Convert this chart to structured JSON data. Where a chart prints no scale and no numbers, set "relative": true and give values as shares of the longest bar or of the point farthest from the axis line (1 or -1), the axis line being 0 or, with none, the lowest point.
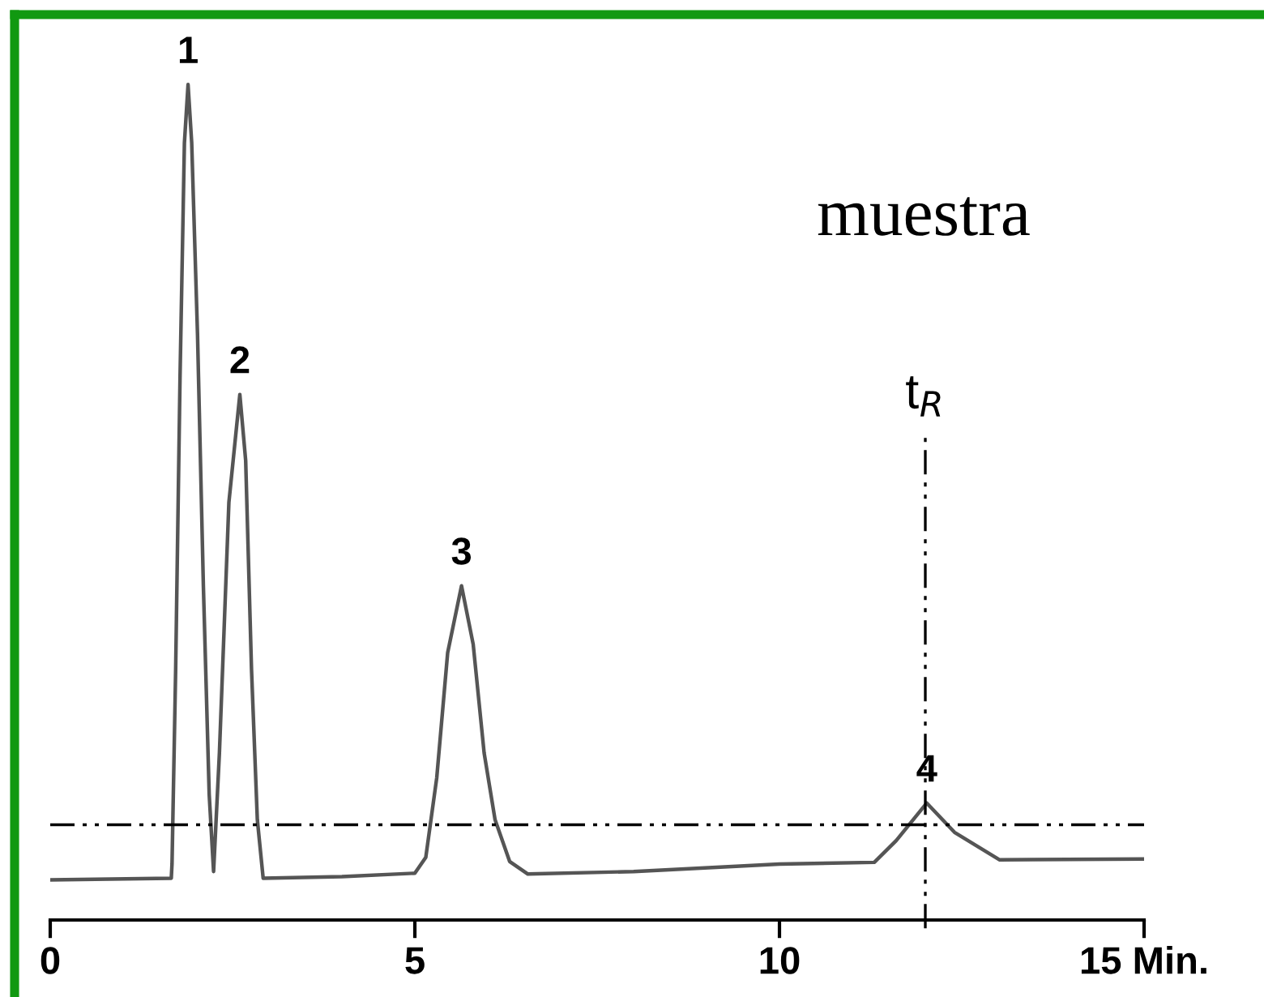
{
  "chart_data": {
    "type": "line",
    "relative": true,
    "series": [
      {
        "color": "#555555",
        "x": [
          0,
          1.66,
          1.67,
          1.72,
          1.78,
          1.84,
          1.89,
          1.94,
          2.02,
          2.1,
          2.18,
          2.24,
          2.32,
          2.45,
          2.6,
          2.68,
          2.76,
          2.84,
          2.92,
          4,
          5.0,
          5.15,
          5.3,
          5.45,
          5.64,
          5.8,
          5.95,
          6.1,
          6.3,
          6.55,
          8,
          10,
          11.3,
          11.6,
          12.02,
          12.4,
          13.02,
          14.98
        ],
        "values": [
          0.048,
          0.05,
          0.067,
          0.3,
          0.65,
          0.93,
          1.0,
          0.93,
          0.7,
          0.4,
          0.15,
          0.058,
          0.2,
          0.5,
          0.629,
          0.55,
          0.3,
          0.12,
          0.05,
          0.052,
          0.056,
          0.075,
          0.17,
          0.32,
          0.4,
          0.33,
          0.2,
          0.12,
          0.07,
          0.055,
          0.058,
          0.067,
          0.069,
          0.095,
          0.14,
          0.105,
          0.072,
          0.073
        ]
      }
    ],
    "xlim": [
      0,
      15
    ],
    "xticks": [
      0,
      5,
      10,
      {
        "value": 15,
        "label": "15 Min."
      }
    ],
    "tick_labels": "x",
    "grid": false,
    "marker": "none",
    "line_style": "solid",
    "ref_lines": [
      {
        "axis": "y",
        "value": 0.114,
        "line_style": "dashdot",
        "color": "#000000"
      },
      {
        "axis": "x",
        "value": 12.0,
        "label": "t$_{R}$",
        "line_style": "dashdot",
        "color": "#000000"
      }
    ],
    "annotations": [
      {
        "text": "1",
        "x": 1.89,
        "y": 1.0
      },
      {
        "text": "2",
        "x": 2.6,
        "y": 0.629
      },
      {
        "text": "3",
        "x": 5.64,
        "y": 0.4
      },
      {
        "text": "4",
        "x": 12.02,
        "y": 0.14
      },
      "muestra"
    ]
  }
}
